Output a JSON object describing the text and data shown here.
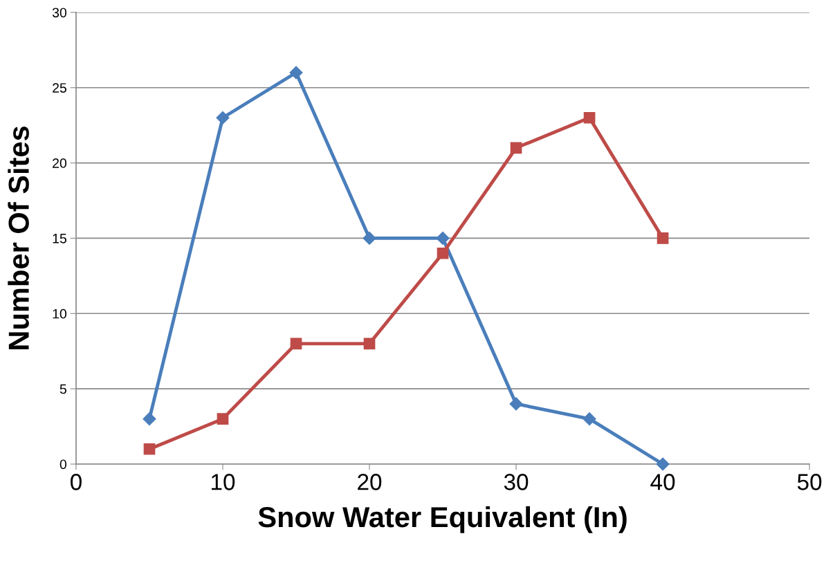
{
  "chart_data": {
    "type": "line",
    "xlabel": "Snow Water Equivalent (In)",
    "ylabel": "Number Of Sites",
    "x": [
      5,
      10,
      15,
      20,
      25,
      30,
      35,
      40
    ],
    "series": [
      {
        "color": "#4a7ebb",
        "marker": "diamond",
        "values": [
          3,
          23,
          26,
          15,
          15,
          4,
          3,
          0
        ]
      },
      {
        "color": "#be4b48",
        "marker": "square",
        "values": [
          1,
          3,
          8,
          8,
          14,
          21,
          23,
          15
        ]
      }
    ],
    "xlim": [
      0,
      50
    ],
    "xticks": [
      0,
      10,
      20,
      30,
      40,
      50
    ],
    "ylim": [
      0,
      30
    ],
    "yticks": [
      0,
      5,
      10,
      15,
      20,
      25,
      30
    ],
    "grid": "y"
  }
}
